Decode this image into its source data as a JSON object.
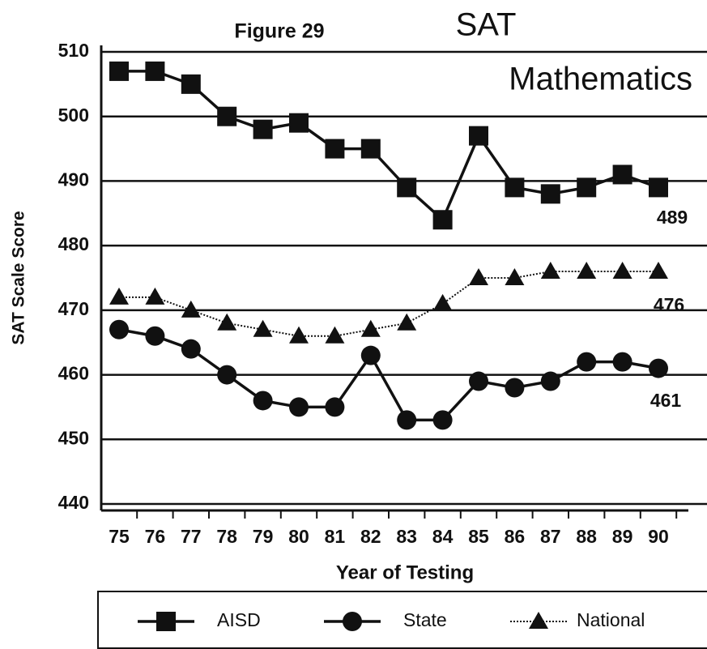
{
  "chart_data": {
    "type": "line",
    "title": "Figure 29",
    "subtitle": [
      "SAT",
      "Mathematics"
    ],
    "ylabel": "SAT Scale Score",
    "xlabel": "Year of Testing",
    "categories": [
      "75",
      "76",
      "77",
      "78",
      "79",
      "80",
      "81",
      "82",
      "83",
      "84",
      "85",
      "86",
      "87",
      "88",
      "89",
      "90"
    ],
    "series": [
      {
        "name": "AISD",
        "color": "#111111",
        "marker": "square",
        "dash": "solid",
        "values": [
          507,
          507,
          505,
          500,
          498,
          499,
          495,
          495,
          489,
          484,
          497,
          489,
          488,
          489,
          491,
          489
        ]
      },
      {
        "name": "State",
        "color": "#111111",
        "marker": "circle",
        "dash": "solid",
        "values": [
          467,
          466,
          464,
          460,
          456,
          455,
          455,
          463,
          453,
          453,
          459,
          458,
          459,
          462,
          462,
          461
        ]
      },
      {
        "name": "National",
        "color": "#111111",
        "marker": "triangle",
        "dash": "dotted",
        "values": [
          472,
          472,
          470,
          468,
          467,
          466,
          466,
          467,
          468,
          471,
          475,
          475,
          476,
          476,
          476,
          476
        ]
      }
    ],
    "annotations": [
      "489",
      "476",
      "461"
    ],
    "ylim": [
      440,
      510
    ],
    "yticks": [
      440,
      450,
      460,
      470,
      480,
      490,
      500,
      510
    ],
    "grid": true,
    "legend": "bottom"
  }
}
